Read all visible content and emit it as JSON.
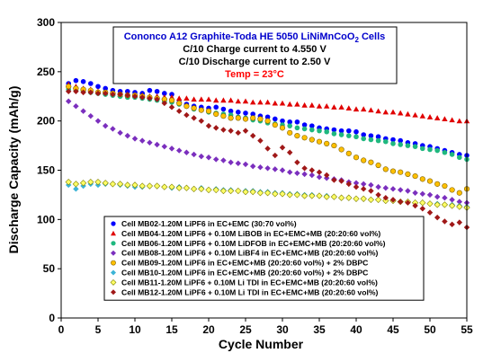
{
  "chart_data": {
    "type": "scatter",
    "xlabel": "Cycle Number",
    "ylabel": "Discharge Capacity (mAh/g)",
    "xlim": [
      0,
      55
    ],
    "ylim": [
      0,
      300
    ],
    "xticks": [
      0,
      5,
      10,
      15,
      20,
      25,
      30,
      35,
      40,
      45,
      50,
      55
    ],
    "yticks": [
      0,
      50,
      100,
      150,
      200,
      250,
      300
    ],
    "grid": false,
    "annotation": {
      "title_main": "Cononco A12 Graphite-Toda HE 5050 LiNiMnCoO",
      "title_sub": "2",
      "title_end": " Cells",
      "line1": "C/10 Charge current to 4.550 V",
      "line2": "C/10 Discharge current to 2.50 V",
      "temp": "Temp = 23°C"
    },
    "legend_position": "bottom-left",
    "series": [
      {
        "name": "Cell MB02-1.20M LiPF6  in EC+EMC (30:70 vol%)",
        "marker": "circle",
        "color": "#0000ff",
        "x": [
          1,
          2,
          3,
          4,
          5,
          6,
          7,
          8,
          9,
          10,
          11,
          12,
          13,
          14,
          15,
          16,
          17,
          18,
          19,
          20,
          21,
          22,
          23,
          24,
          25,
          26,
          27,
          28,
          29,
          30,
          31,
          32,
          33,
          34,
          35,
          36,
          37,
          38,
          39,
          40,
          41,
          42,
          43,
          44,
          45,
          46,
          47,
          48,
          49,
          50,
          51,
          52,
          53,
          54,
          55
        ],
        "y": [
          238,
          241,
          240,
          238,
          235,
          233,
          231,
          230,
          230,
          229,
          228,
          231,
          230,
          228,
          227,
          219,
          217,
          215,
          214,
          213,
          214,
          212,
          210,
          209,
          208,
          207,
          205,
          204,
          202,
          200,
          199,
          199,
          196,
          195,
          193,
          192,
          191,
          190,
          190,
          189,
          186,
          185,
          184,
          182,
          181,
          180,
          178,
          177,
          175,
          174,
          172,
          170,
          168,
          166,
          165
        ]
      },
      {
        "name": "Cell MB04-1.20M LiPF6 + 0.10M LiBOB  in EC+EMC+MB (20:20:60 vol%)",
        "marker": "triangle",
        "color": "#e00000",
        "x": [
          1,
          2,
          3,
          4,
          5,
          6,
          7,
          8,
          9,
          10,
          11,
          12,
          13,
          14,
          15,
          16,
          17,
          18,
          19,
          20,
          21,
          22,
          23,
          24,
          25,
          26,
          27,
          28,
          29,
          30,
          31,
          32,
          33,
          34,
          35,
          36,
          37,
          38,
          39,
          40,
          41,
          42,
          43,
          44,
          45,
          46,
          47,
          48,
          49,
          50,
          51,
          52,
          53,
          54,
          55
        ],
        "y": [
          237,
          235,
          233,
          232,
          230,
          229,
          228,
          227,
          227,
          226,
          226,
          225,
          225,
          224,
          224,
          223,
          223,
          222,
          222,
          222,
          221,
          221,
          221,
          220,
          220,
          219,
          219,
          219,
          218,
          218,
          217,
          217,
          216,
          216,
          215,
          215,
          214,
          214,
          213,
          212,
          212,
          211,
          210,
          209,
          209,
          208,
          207,
          206,
          205,
          204,
          203,
          202,
          201,
          200,
          200
        ]
      },
      {
        "name": "Cell MB06-1.20M LiPF6 + 0.10M LiDFOB in EC+EMC+MB (20:20:60 vol%)",
        "marker": "circle",
        "color": "#1fb87f",
        "x": [
          1,
          2,
          3,
          4,
          5,
          6,
          7,
          8,
          9,
          10,
          11,
          12,
          13,
          14,
          15,
          16,
          17,
          18,
          19,
          20,
          21,
          22,
          23,
          24,
          25,
          26,
          27,
          28,
          29,
          30,
          31,
          32,
          33,
          34,
          35,
          36,
          37,
          38,
          39,
          40,
          41,
          42,
          43,
          44,
          45,
          46,
          47,
          48,
          49,
          50,
          51,
          52,
          53,
          54,
          55
        ],
        "y": [
          232,
          231,
          230,
          229,
          228,
          227,
          226,
          225,
          224,
          224,
          223,
          222,
          221,
          220,
          219,
          217,
          215,
          212,
          211,
          209,
          208,
          207,
          206,
          204,
          203,
          201,
          200,
          198,
          197,
          196,
          195,
          193,
          192,
          191,
          190,
          189,
          187,
          186,
          185,
          184,
          182,
          181,
          180,
          179,
          177,
          176,
          175,
          174,
          172,
          171,
          170,
          168,
          166,
          163,
          161
        ]
      },
      {
        "name": "Cell MB08-1.20M LiPF6 + 0.10M LiBF4 in EC+EMC+MB (20:20:60 vol%)",
        "marker": "diamond",
        "color": "#7b2fbe",
        "x": [
          1,
          2,
          3,
          4,
          5,
          6,
          7,
          8,
          9,
          10,
          11,
          12,
          13,
          14,
          15,
          16,
          17,
          18,
          19,
          20,
          21,
          22,
          23,
          24,
          25,
          26,
          27,
          28,
          29,
          30,
          31,
          32,
          33,
          34,
          35,
          36,
          37,
          38,
          39,
          40,
          41,
          42,
          43,
          44,
          45,
          46,
          47,
          48,
          49,
          50,
          51,
          52,
          53,
          54,
          55
        ],
        "y": [
          220,
          215,
          210,
          205,
          200,
          195,
          192,
          188,
          185,
          182,
          180,
          178,
          176,
          174,
          172,
          170,
          168,
          166,
          164,
          163,
          161,
          160,
          158,
          157,
          156,
          154,
          153,
          152,
          151,
          150,
          148,
          147,
          146,
          145,
          143,
          142,
          141,
          140,
          138,
          137,
          136,
          135,
          133,
          132,
          131,
          130,
          129,
          127,
          126,
          125,
          123,
          122,
          120,
          118,
          117
        ]
      },
      {
        "name": "Cell MB09-1.20M LiPF6  in EC+EMC+MB (20:20:60 vol%) + 2% DBPC",
        "marker": "circle",
        "color": "#ffc000",
        "outline": "#7f6000",
        "x": [
          1,
          2,
          3,
          4,
          5,
          6,
          7,
          8,
          9,
          10,
          11,
          12,
          13,
          14,
          15,
          16,
          17,
          18,
          19,
          20,
          21,
          22,
          23,
          24,
          25,
          26,
          27,
          28,
          29,
          30,
          31,
          32,
          33,
          34,
          35,
          36,
          37,
          38,
          39,
          40,
          41,
          42,
          43,
          44,
          45,
          46,
          47,
          48,
          49,
          50,
          51,
          52,
          53,
          54,
          55
        ],
        "y": [
          235,
          233,
          232,
          231,
          229,
          229,
          228,
          227,
          226,
          226,
          225,
          224,
          223,
          222,
          221,
          218,
          215,
          213,
          211,
          210,
          207,
          205,
          203,
          203,
          202,
          203,
          202,
          200,
          196,
          193,
          188,
          185,
          183,
          181,
          179,
          177,
          175,
          171,
          167,
          163,
          160,
          158,
          155,
          151,
          149,
          148,
          146,
          144,
          141,
          139,
          136,
          134,
          130,
          127,
          131
        ]
      },
      {
        "name": "Cell MB10-1.20M LiPF6  in EC+EMC+MB (20:20:60 vol%) + 2% DBPC",
        "marker": "diamond",
        "color": "#3cb4d6",
        "x": [
          1,
          2,
          3,
          4,
          5,
          6,
          7,
          8,
          9,
          10,
          11,
          12,
          13,
          14,
          15,
          16,
          17,
          18,
          19,
          20,
          21,
          22,
          23,
          24,
          25,
          26,
          27,
          28,
          29,
          30,
          31,
          32,
          33,
          34,
          35,
          36,
          37,
          38,
          39,
          40,
          41,
          42,
          43,
          44,
          45,
          46,
          47,
          48,
          49,
          50,
          51,
          52,
          53,
          54,
          55
        ],
        "y": [
          135,
          131,
          134,
          136,
          135,
          136,
          136,
          135,
          134,
          133,
          133,
          134,
          134,
          133,
          132,
          133,
          132,
          131,
          132,
          130,
          131,
          130,
          130,
          129,
          129,
          129,
          128,
          128,
          127,
          127,
          126,
          126,
          125,
          125,
          124,
          124,
          123,
          122,
          122,
          121,
          121,
          120,
          120,
          119,
          119,
          118,
          118,
          117,
          117,
          116,
          116,
          115,
          115,
          114,
          113
        ]
      },
      {
        "name": "Cell MB11-1.20M LiPF6  + 0.10M Li TDI in EC+EMC+MB (20:20:60 vol%)",
        "marker": "diamond",
        "color": "#ffff66",
        "outline": "#7f7f00",
        "x": [
          1,
          2,
          3,
          4,
          5,
          6,
          7,
          8,
          9,
          10,
          11,
          12,
          13,
          14,
          15,
          16,
          17,
          18,
          19,
          20,
          21,
          22,
          23,
          24,
          25,
          26,
          27,
          28,
          29,
          30,
          31,
          32,
          33,
          34,
          35,
          36,
          37,
          38,
          39,
          40,
          41,
          42,
          43,
          44,
          45,
          46,
          47,
          48,
          49,
          50,
          51,
          52,
          53,
          54,
          55
        ],
        "y": [
          138,
          136,
          137,
          138,
          138,
          137,
          136,
          136,
          135,
          135,
          134,
          134,
          134,
          133,
          133,
          132,
          132,
          131,
          131,
          130,
          130,
          129,
          129,
          129,
          128,
          128,
          127,
          127,
          126,
          126,
          125,
          125,
          124,
          124,
          124,
          123,
          123,
          122,
          122,
          121,
          121,
          120,
          120,
          119,
          119,
          118,
          118,
          117,
          117,
          116,
          115,
          115,
          114,
          113,
          112
        ]
      },
      {
        "name": "Cell MB12-1.20M LiPF6  + 0.10M Li TDI in EC+EMC+MB (20:20:60 vol%)",
        "marker": "diamond",
        "color": "#a01818",
        "x": [
          1,
          2,
          3,
          4,
          5,
          6,
          7,
          8,
          9,
          10,
          11,
          12,
          13,
          14,
          15,
          16,
          17,
          18,
          19,
          20,
          21,
          22,
          23,
          24,
          25,
          26,
          27,
          28,
          29,
          30,
          31,
          32,
          33,
          34,
          35,
          36,
          37,
          38,
          39,
          40,
          41,
          42,
          43,
          44,
          45,
          46,
          47,
          48,
          49,
          50,
          51,
          52,
          53,
          54,
          55
        ],
        "y": [
          230,
          230,
          229,
          229,
          228,
          228,
          227,
          227,
          226,
          225,
          224,
          223,
          222,
          218,
          214,
          210,
          206,
          203,
          200,
          195,
          193,
          191,
          190,
          188,
          190,
          185,
          180,
          172,
          165,
          173,
          168,
          158,
          152,
          150,
          148,
          145,
          140,
          139,
          136,
          133,
          131,
          129,
          125,
          122,
          120,
          118,
          117,
          114,
          111,
          107,
          102,
          98,
          95,
          97,
          92
        ]
      }
    ]
  }
}
